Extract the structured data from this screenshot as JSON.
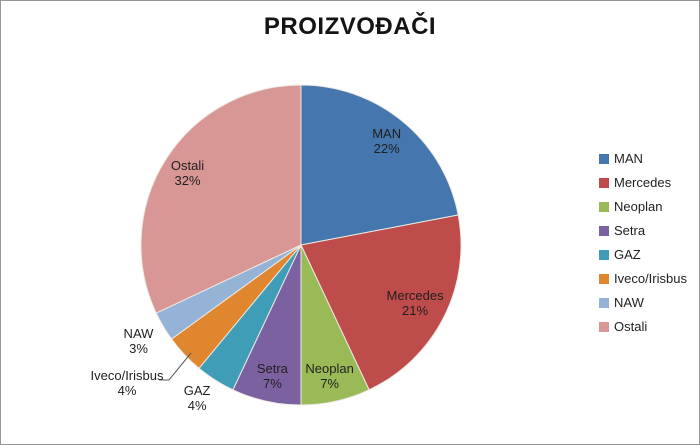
{
  "frame": {
    "background": "#FFFFFF",
    "border_color": "#969696"
  },
  "chart_data": {
    "type": "pie",
    "title": "PROIZVOĐAČI",
    "start_angle_deg": 0,
    "direction": "clockwise",
    "legend_position": "right",
    "label_text_color": "#1F1F1F",
    "slice_border_color": "#EDEAE4",
    "slices": [
      {
        "label": "MAN",
        "value": 22,
        "color": "#4576AD",
        "label_inside": true
      },
      {
        "label": "Mercedes",
        "value": 21,
        "color": "#BE4C4A",
        "label_inside": true
      },
      {
        "label": "Neoplan",
        "value": 7,
        "color": "#9ABA58",
        "label_inside": true
      },
      {
        "label": "Setra",
        "value": 7,
        "color": "#7C61A1",
        "label_inside": true
      },
      {
        "label": "GAZ",
        "value": 4,
        "color": "#3F9DB8",
        "label_inside": false
      },
      {
        "label": "Iveco/Irisbus",
        "value": 4,
        "color": "#E0862F",
        "label_inside": false,
        "leader_line": true
      },
      {
        "label": "NAW",
        "value": 3,
        "color": "#95B3D7",
        "label_inside": false
      },
      {
        "label": "Ostali",
        "value": 32,
        "color": "#D89795",
        "label_inside": true
      }
    ]
  }
}
